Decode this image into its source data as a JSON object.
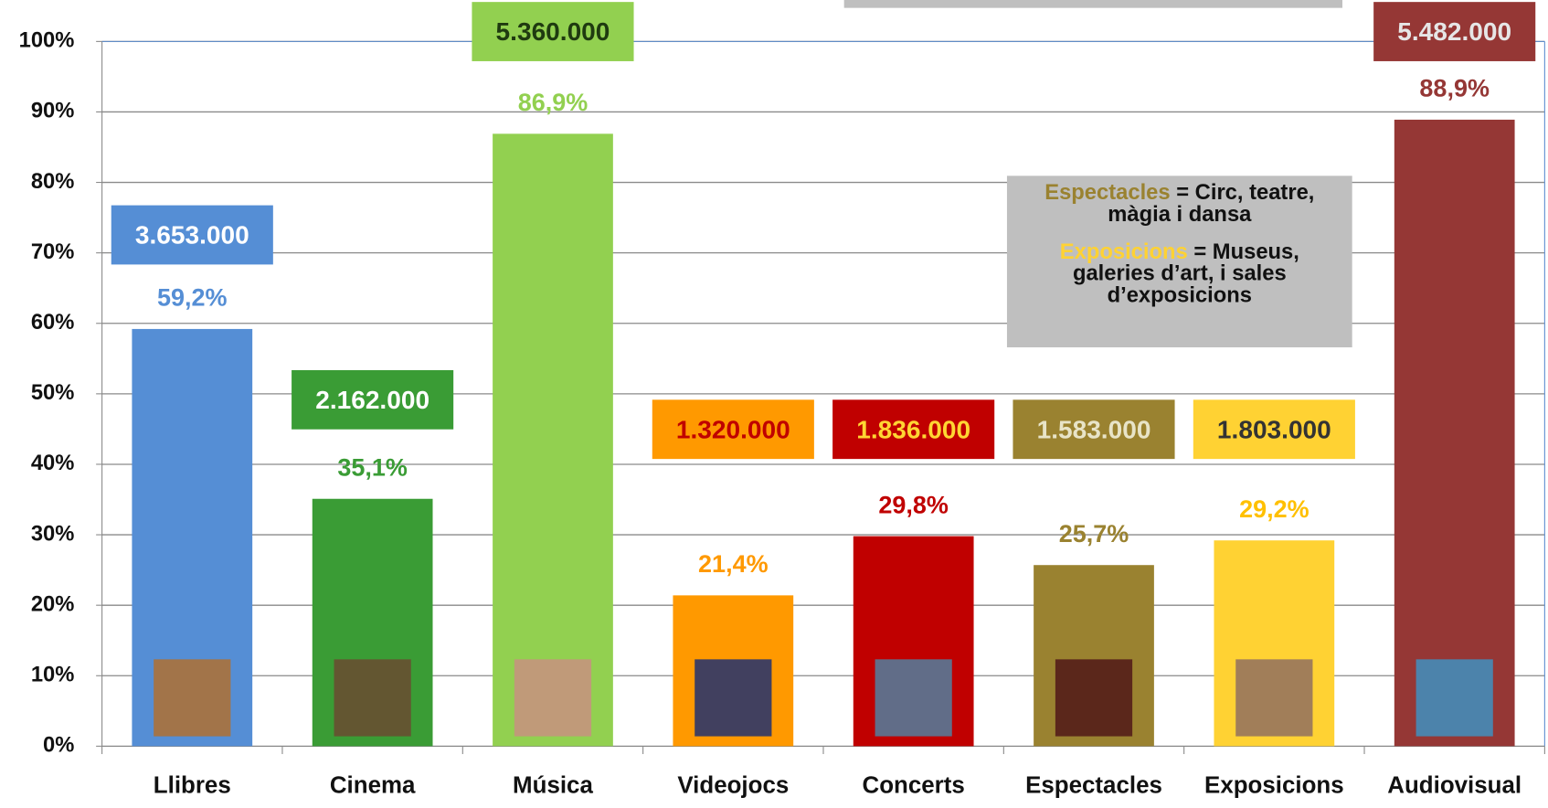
{
  "chart_data": {
    "type": "bar",
    "categories": [
      "Llibres",
      "Cinema",
      "Música",
      "Videojocs",
      "Concerts",
      "Espectacles",
      "Exposicions",
      "Audiovisual"
    ],
    "values": [
      59.2,
      35.1,
      86.9,
      21.4,
      29.8,
      25.7,
      29.2,
      88.9
    ],
    "value_labels": [
      "59,2%",
      "35,1%",
      "86,9%",
      "21,4%",
      "29,8%",
      "25,7%",
      "29,2%",
      "88,9%"
    ],
    "colors": [
      "#558ed5",
      "#3a9c35",
      "#92d050",
      "#ff9900",
      "#c00000",
      "#9a8230",
      "#ffd233",
      "#953735"
    ],
    "label_colors": [
      "#558ed5",
      "#3a9c35",
      "#92d050",
      "#ff9900",
      "#c00000",
      "#9a8230",
      "#ffc000",
      "#953735"
    ],
    "counts": [
      3653000,
      2162000,
      5360000,
      1320000,
      1836000,
      1583000,
      1803000,
      5482000
    ],
    "count_labels": [
      "3.653.000",
      "2.162.000",
      "5.360.000",
      "1.320.000",
      "1.836.000",
      "1.583.000",
      "1.803.000",
      "5.482.000"
    ],
    "count_box_colors": [
      "#558ed5",
      "#3a9c35",
      "#92d050",
      "#ff9900",
      "#c00000",
      "#9a8230",
      "#ffd233",
      "#953735"
    ],
    "count_text_colors": [
      "#ffffff",
      "#ffffff",
      "#1f3a10",
      "#c00000",
      "#ffd633",
      "#e8e4c8",
      "#333333",
      "#e6e6e6"
    ],
    "ylim": [
      0,
      100
    ],
    "yticks": [
      {
        "value": 0,
        "label": "0%"
      },
      {
        "value": 10,
        "label": "10%"
      },
      {
        "value": 20,
        "label": "20%"
      },
      {
        "value": 30,
        "label": "30%"
      },
      {
        "value": 40,
        "label": "40%"
      },
      {
        "value": 50,
        "label": "50%"
      },
      {
        "value": 60,
        "label": "60%"
      },
      {
        "value": 70,
        "label": "70%"
      },
      {
        "value": 80,
        "label": "80%"
      },
      {
        "value": 90,
        "label": "90%"
      },
      {
        "value": 100,
        "label": "100%"
      }
    ],
    "grid": true,
    "annotations": [
      {
        "term": "Espectacles",
        "text": "= Circ, teatre, màgia i dansa",
        "color": "#9a8230"
      },
      {
        "term": "Exposicions",
        "text": "= Museus, galeries d’art, i sales d’exposicions",
        "color": "#ffd233"
      }
    ]
  }
}
